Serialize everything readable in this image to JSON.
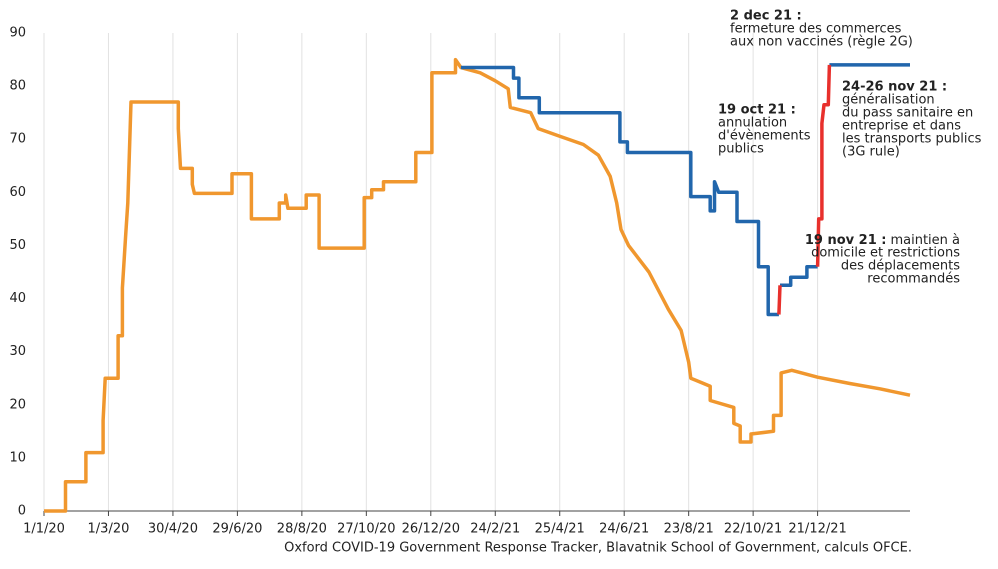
{
  "chart_data": {
    "type": "line",
    "source": "Oxford COVID-19 Government Response Tracker, Blavatnik School of Government, calculs OFCE.",
    "xlim": [
      "2020-01-01",
      "2022-03-17"
    ],
    "xticks": [
      {
        "value": "2020-01-01",
        "label": "1/1/20"
      },
      {
        "value": "2020-03-01",
        "label": "1/3/20"
      },
      {
        "value": "2020-04-30",
        "label": "30/4/20"
      },
      {
        "value": "2020-06-29",
        "label": "29/6/20"
      },
      {
        "value": "2020-08-28",
        "label": "28/8/20"
      },
      {
        "value": "2020-10-27",
        "label": "27/10/20"
      },
      {
        "value": "2020-12-26",
        "label": "26/12/20"
      },
      {
        "value": "2021-02-24",
        "label": "24/2/21"
      },
      {
        "value": "2021-04-25",
        "label": "25/4/21"
      },
      {
        "value": "2021-06-24",
        "label": "24/6/21"
      },
      {
        "value": "2021-08-23",
        "label": "23/8/21"
      },
      {
        "value": "2021-10-22",
        "label": "22/10/21"
      },
      {
        "value": "2021-12-21",
        "label": "21/12/21"
      }
    ],
    "ylim": [
      0,
      90
    ],
    "yticks": [
      0,
      10,
      20,
      30,
      40,
      50,
      60,
      70,
      80,
      90
    ],
    "grid": "x",
    "series": [
      {
        "color": "#f0972e",
        "x": [
          "2020-01-01",
          "2020-01-21",
          "2020-01-21",
          "2020-02-09",
          "2020-02-09",
          "2020-02-25",
          "2020-02-25",
          "2020-02-27",
          "2020-03-10",
          "2020-03-10",
          "2020-03-14",
          "2020-03-14",
          "2020-03-17",
          "2020-03-19",
          "2020-03-22",
          "2020-05-05",
          "2020-05-05",
          "2020-05-07",
          "2020-05-18",
          "2020-05-18",
          "2020-05-20",
          "2020-06-24",
          "2020-06-24",
          "2020-07-12",
          "2020-07-12",
          "2020-08-07",
          "2020-08-07",
          "2020-08-13",
          "2020-08-13",
          "2020-08-15",
          "2020-09-01",
          "2020-09-01",
          "2020-09-13",
          "2020-09-13",
          "2020-10-25",
          "2020-10-25",
          "2020-11-01",
          "2020-11-01",
          "2020-11-12",
          "2020-11-12",
          "2020-12-12",
          "2020-12-12",
          "2020-12-27",
          "2020-12-27",
          "2021-01-18",
          "2021-01-18",
          "2021-01-23",
          "2021-02-10",
          "2021-02-24",
          "2021-03-08",
          "2021-03-10",
          "2021-03-29",
          "2021-04-05",
          "2021-04-26",
          "2021-05-17",
          "2021-05-31",
          "2021-06-11",
          "2021-06-17",
          "2021-06-21",
          "2021-06-28",
          "2021-07-17",
          "2021-08-04",
          "2021-08-16",
          "2021-08-23",
          "2021-08-25",
          "2021-09-12",
          "2021-09-12",
          "2021-10-04",
          "2021-10-04",
          "2021-10-10",
          "2021-10-10",
          "2021-10-20",
          "2021-10-20",
          "2021-11-10",
          "2021-11-10",
          "2021-11-17",
          "2021-11-17",
          "2021-11-27",
          "2021-12-21",
          "2022-01-20",
          "2022-02-17",
          "2022-03-17"
        ],
        "values": [
          0,
          0,
          5.5,
          5.5,
          11,
          11,
          17,
          25,
          25,
          33,
          33,
          42,
          52,
          58,
          77,
          77,
          72,
          64.5,
          64.5,
          61.5,
          59.8,
          59.8,
          63.5,
          63.5,
          55,
          55,
          58,
          58,
          59.5,
          57,
          57,
          59.5,
          59.5,
          49.5,
          49.5,
          59,
          59,
          60.5,
          60.5,
          62,
          62,
          67.5,
          67.5,
          82.5,
          82.5,
          85,
          83.5,
          82.5,
          81,
          79.5,
          76,
          75,
          72,
          70.5,
          69,
          67,
          63,
          58,
          53,
          50,
          45,
          38,
          34,
          28,
          25,
          23.5,
          20.8,
          19.5,
          16.5,
          16,
          13,
          13,
          14.5,
          15,
          18,
          18,
          26,
          26.5,
          25.2,
          24,
          23,
          21.8
        ]
      },
      {
        "color": "#2166ac",
        "x": [
          "2021-01-23",
          "2021-03-13",
          "2021-03-13",
          "2021-03-18",
          "2021-03-18",
          "2021-04-06",
          "2021-04-06",
          "2021-06-20",
          "2021-06-20",
          "2021-06-27",
          "2021-06-27",
          "2021-08-25",
          "2021-08-25",
          "2021-09-12",
          "2021-09-12",
          "2021-09-16",
          "2021-09-16",
          "2021-09-20",
          "2021-10-07",
          "2021-10-07",
          "2021-10-27",
          "2021-10-27",
          "2021-11-05",
          "2021-11-05",
          "2021-11-15",
          "2021-11-15",
          "2021-11-16",
          "2021-11-26",
          "2021-11-26",
          "2021-12-11",
          "2021-12-11",
          "2021-12-21",
          "2021-12-22",
          "2022-01-01",
          "2022-03-17"
        ],
        "values": [
          83.5,
          83.5,
          81.5,
          81.5,
          77.8,
          77.8,
          75,
          75,
          69.5,
          69.5,
          67.5,
          67.5,
          59.2,
          59.2,
          56.5,
          56.5,
          62,
          60,
          60,
          54.5,
          54.5,
          46,
          46,
          37,
          37,
          null,
          42.5,
          42.5,
          44,
          44,
          46,
          46,
          null,
          84,
          84
        ]
      },
      {
        "color": "#e8302c",
        "x": [
          "2021-11-15",
          "2021-11-16",
          "2021-11-18",
          "2021-12-21",
          "2021-12-22",
          "2021-12-25",
          "2021-12-25",
          "2021-12-27",
          "2021-12-31",
          "2022-01-01"
        ],
        "values": [
          37,
          42.5,
          null,
          46,
          55,
          55,
          73,
          76.5,
          76.5,
          84
        ]
      }
    ],
    "annotations": [
      {
        "title": "2 dec 21 :",
        "lines": [
          "fermeture des commerces",
          "aux non vaccinés (règle 2G)"
        ]
      },
      {
        "title": "19 oct 21 :",
        "lines": [
          "annulation",
          "d'évènements",
          "publics"
        ]
      },
      {
        "title": "24-26 nov 21 :",
        "lines": [
          "généralisation",
          "du pass sanitaire en",
          "entreprise et dans",
          "les transports publics",
          "(3G rule)"
        ]
      },
      {
        "title": "19 nov 21 :",
        "lines": [
          "maintien à",
          "domicile et restrictions",
          "des déplacements",
          "recommandés"
        ]
      }
    ]
  }
}
